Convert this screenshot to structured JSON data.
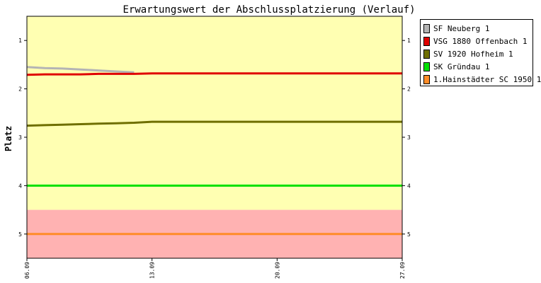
{
  "chart_data": {
    "type": "line",
    "title": "Erwartungswert der Abschlussplatzierung (Verlauf)",
    "ylabel": "Platz",
    "xlabel": "",
    "x": [
      "06.09",
      "07.09",
      "08.09",
      "09.09",
      "10.09",
      "11.09",
      "12.09",
      "13.09",
      "14.09",
      "15.09",
      "16.09",
      "17.09",
      "18.09",
      "19.09",
      "20.09",
      "21.09",
      "22.09",
      "23.09",
      "24.09",
      "25.09",
      "26.09",
      "27.09"
    ],
    "x_ticks": [
      "06.09",
      "13.09",
      "20.09",
      "27.09"
    ],
    "y_ticks": [
      1,
      2,
      3,
      4,
      5
    ],
    "ylim": [
      0.5,
      5.5
    ],
    "y_inverted": true,
    "zones": [
      {
        "from": 0.5,
        "to": 4.5,
        "color": "#ffffb2"
      },
      {
        "from": 4.5,
        "to": 5.5,
        "color": "#ffb2b2"
      }
    ],
    "series": [
      {
        "name": "SF Neuberg 1",
        "color": "#b4b4b4",
        "values": [
          1.55,
          1.57,
          1.58,
          1.6,
          1.62,
          1.64,
          1.66,
          null,
          null,
          null,
          null,
          null,
          null,
          null,
          null,
          null,
          null,
          null,
          null,
          null,
          null,
          null
        ]
      },
      {
        "name": "VSG 1880 Offenbach 1",
        "color": "#e00000",
        "values": [
          1.71,
          1.7,
          1.7,
          1.7,
          1.69,
          1.69,
          1.69,
          1.68,
          1.68,
          1.68,
          1.68,
          1.68,
          1.68,
          1.68,
          1.68,
          1.68,
          1.68,
          1.68,
          1.68,
          1.68,
          1.68,
          1.68
        ]
      },
      {
        "name": "SV 1920 Hofheim 1",
        "color": "#6f6f00",
        "values": [
          2.76,
          2.75,
          2.74,
          2.73,
          2.72,
          2.71,
          2.7,
          2.68,
          2.68,
          2.68,
          2.68,
          2.68,
          2.68,
          2.68,
          2.68,
          2.68,
          2.68,
          2.68,
          2.68,
          2.68,
          2.68,
          2.68
        ]
      },
      {
        "name": "SK Gründau 1",
        "color": "#00e000",
        "values": [
          4,
          4,
          4,
          4,
          4,
          4,
          4,
          4,
          4,
          4,
          4,
          4,
          4,
          4,
          4,
          4,
          4,
          4,
          4,
          4,
          4,
          4
        ]
      },
      {
        "name": "1.Hainstädter SC 1950 1",
        "color": "#ff8c28",
        "values": [
          5,
          5,
          5,
          5,
          5,
          5,
          5,
          5,
          5,
          5,
          5,
          5,
          5,
          5,
          5,
          5,
          5,
          5,
          5,
          5,
          5,
          5
        ]
      }
    ]
  }
}
